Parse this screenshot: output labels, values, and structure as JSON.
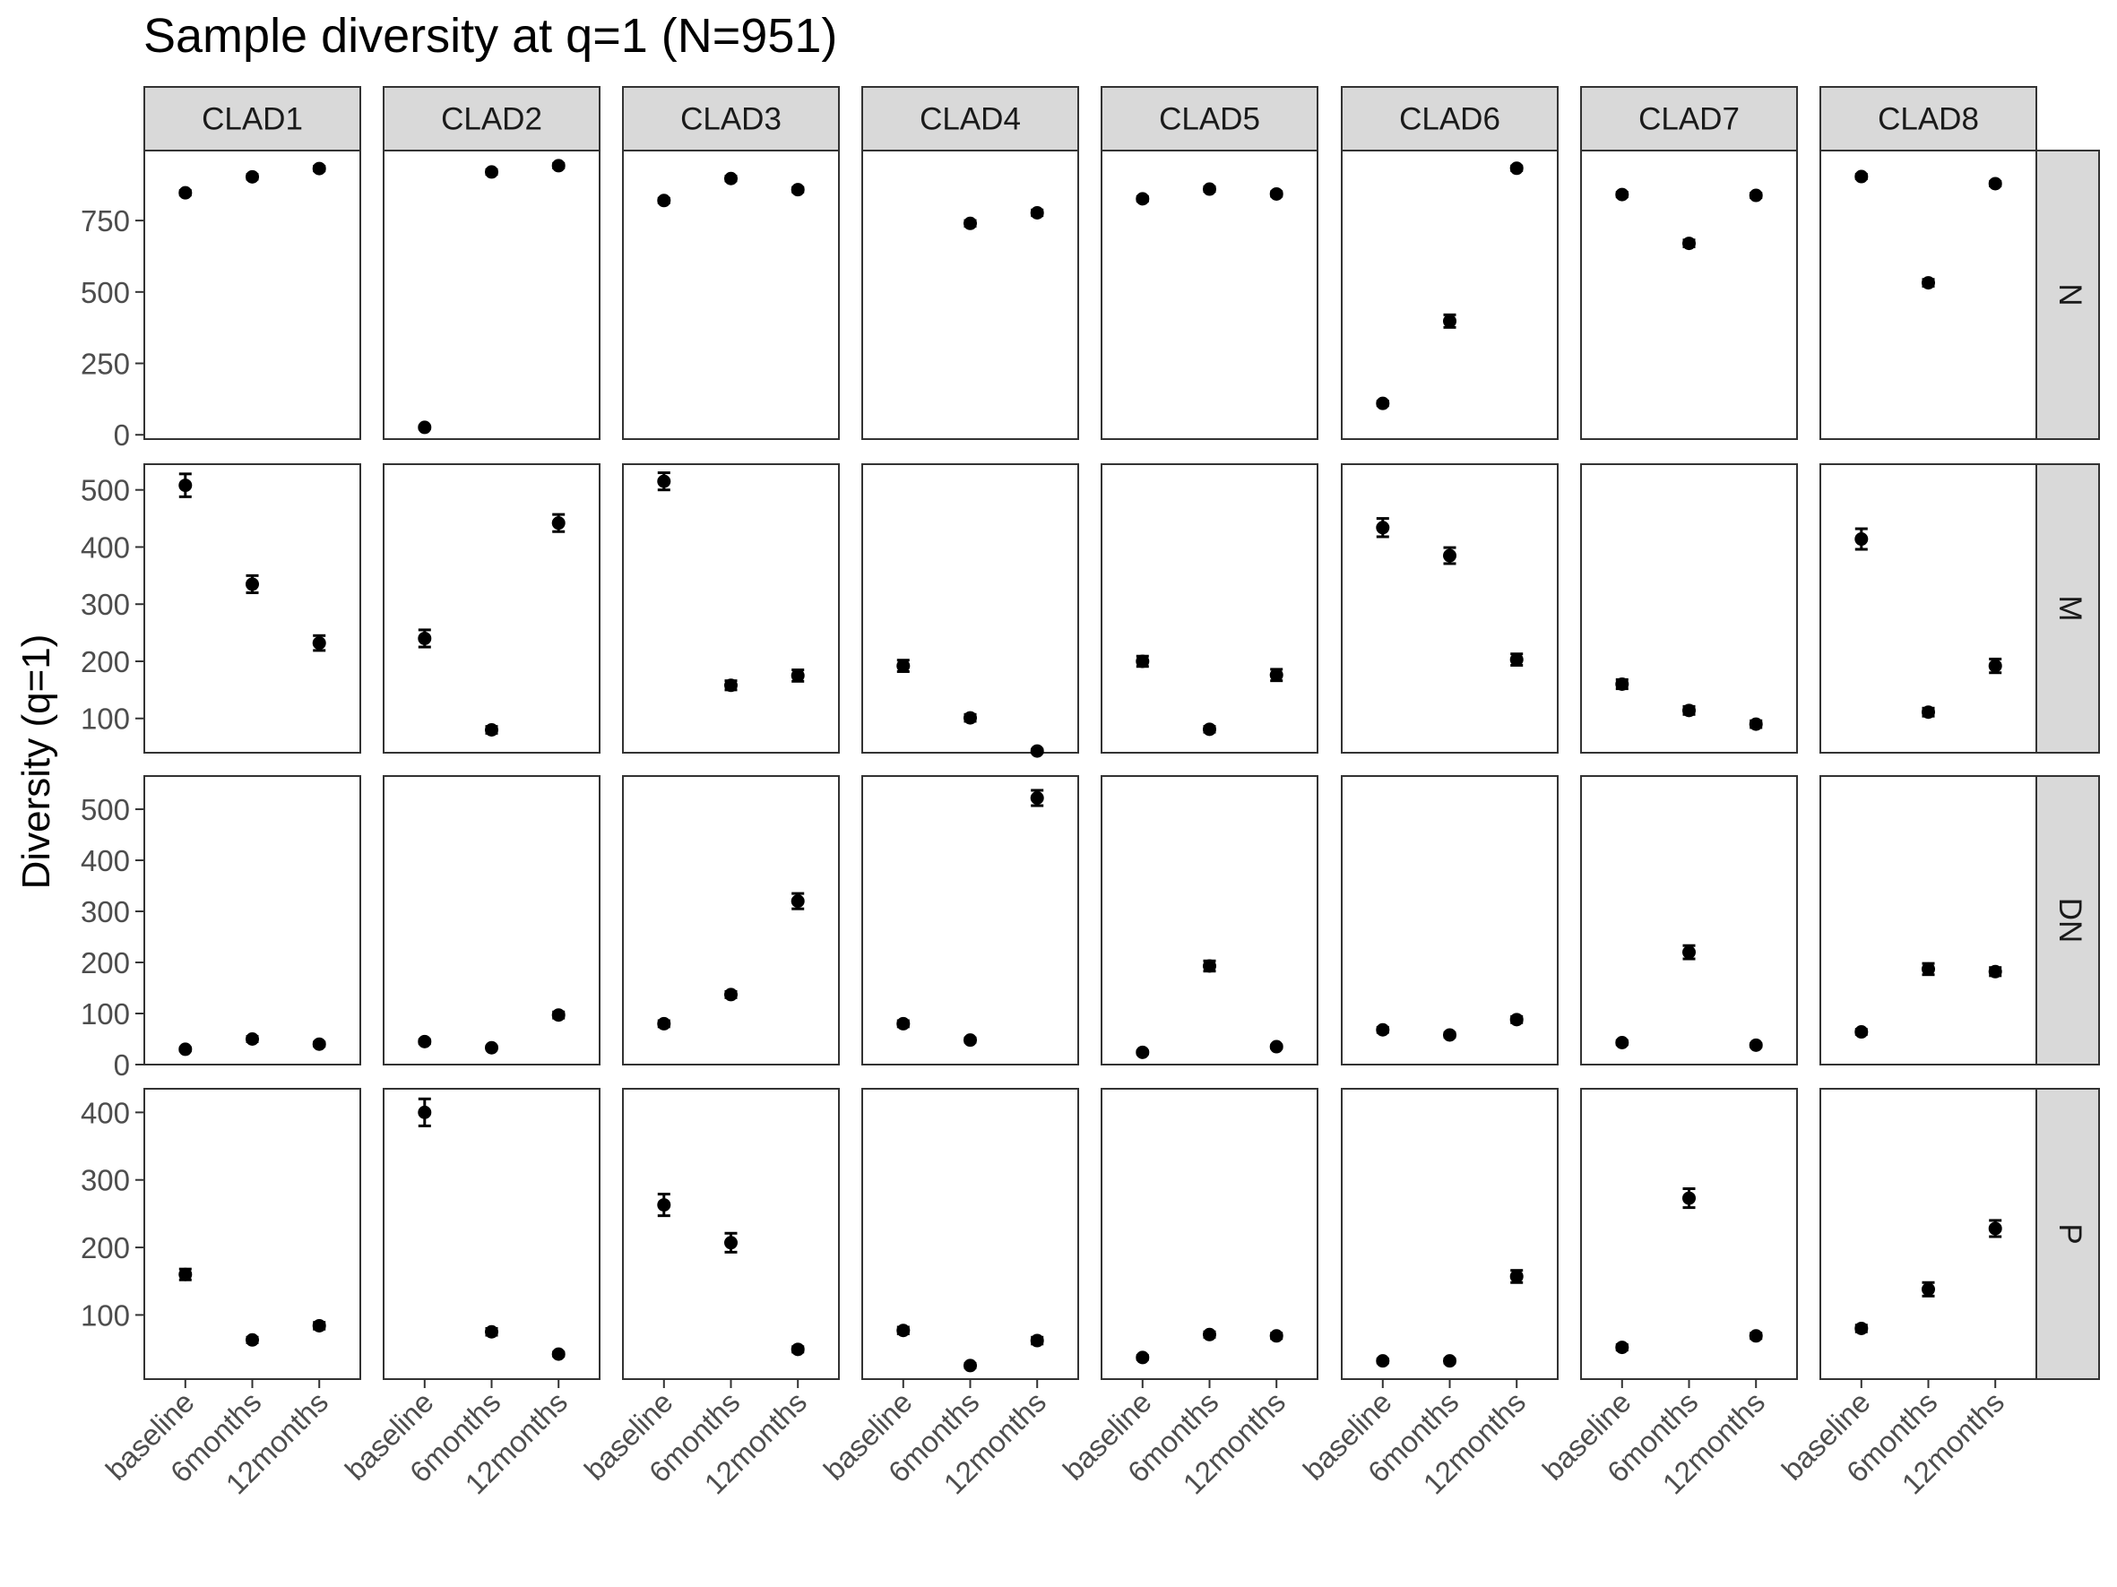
{
  "chart_data": {
    "type": "scatter",
    "title": "Sample diversity at q=1 (N=951)",
    "ylabel": "Diversity (q=1)",
    "xlabel": "",
    "columns": [
      "CLAD1",
      "CLAD2",
      "CLAD3",
      "CLAD4",
      "CLAD5",
      "CLAD6",
      "CLAD7",
      "CLAD8"
    ],
    "categories": [
      "baseline",
      "6months",
      "12months"
    ],
    "error_bars": true,
    "grid": false,
    "rows": [
      {
        "name": "N",
        "ylim": [
          -15,
          995
        ],
        "yticks": [
          0,
          250,
          500,
          750
        ],
        "points": [
          [
            [
              847,
              8
            ],
            [
              903,
              8
            ],
            [
              932,
              8
            ]
          ],
          [
            [
              26,
              4
            ],
            [
              920,
              8
            ],
            [
              942,
              8
            ]
          ],
          [
            [
              820,
              8
            ],
            [
              897,
              8
            ],
            [
              858,
              8
            ]
          ],
          [
            null,
            [
              740,
              10
            ],
            [
              777,
              10
            ]
          ],
          [
            [
              826,
              8
            ],
            [
              860,
              8
            ],
            [
              843,
              8
            ]
          ],
          [
            [
              110,
              8
            ],
            [
              398,
              22
            ],
            [
              933,
              8
            ]
          ],
          [
            [
              841,
              8
            ],
            [
              670,
              12
            ],
            [
              838,
              8
            ]
          ],
          [
            [
              904,
              8
            ],
            [
              532,
              12
            ],
            [
              879,
              8
            ]
          ]
        ]
      },
      {
        "name": "M",
        "ylim": [
          40,
          545
        ],
        "yticks": [
          100,
          200,
          300,
          400,
          500
        ],
        "points": [
          [
            [
              508,
              20
            ],
            [
              335,
              15
            ],
            [
              232,
              13
            ]
          ],
          [
            [
              240,
              15
            ],
            [
              80,
              6
            ],
            [
              442,
              15
            ]
          ],
          [
            [
              515,
              15
            ],
            [
              158,
              8
            ],
            [
              175,
              10
            ]
          ],
          [
            [
              192,
              10
            ],
            [
              101,
              6
            ],
            [
              43,
              3
            ]
          ],
          [
            [
              200,
              9
            ],
            [
              81,
              5
            ],
            [
              176,
              10
            ]
          ],
          [
            [
              434,
              16
            ],
            [
              385,
              14
            ],
            [
              203,
              10
            ]
          ],
          [
            [
              160,
              8
            ],
            [
              114,
              7
            ],
            [
              90,
              6
            ]
          ],
          [
            [
              414,
              18
            ],
            [
              111,
              7
            ],
            [
              192,
              12
            ]
          ]
        ]
      },
      {
        "name": "DN",
        "ylim": [
          0,
          565
        ],
        "yticks": [
          0,
          100,
          200,
          300,
          400,
          500
        ],
        "points": [
          [
            [
              30,
              3
            ],
            [
              50,
              5
            ],
            [
              40,
              4
            ]
          ],
          [
            [
              45,
              4
            ],
            [
              33,
              3
            ],
            [
              97,
              6
            ]
          ],
          [
            [
              80,
              6
            ],
            [
              137,
              6
            ],
            [
              320,
              15
            ]
          ],
          [
            [
              80,
              6
            ],
            [
              48,
              4
            ],
            [
              522,
              15
            ]
          ],
          [
            [
              24,
              3
            ],
            [
              193,
              10
            ],
            [
              35,
              3
            ]
          ],
          [
            [
              68,
              5
            ],
            [
              58,
              4
            ],
            [
              88,
              6
            ]
          ],
          [
            [
              43,
              4
            ],
            [
              220,
              13
            ],
            [
              38,
              3
            ]
          ],
          [
            [
              64,
              5
            ],
            [
              187,
              11
            ],
            [
              182,
              8
            ]
          ]
        ]
      },
      {
        "name": "P",
        "ylim": [
          5,
          435
        ],
        "yticks": [
          100,
          200,
          300,
          400
        ],
        "points": [
          [
            [
              160,
              8
            ],
            [
              63,
              4
            ],
            [
              84,
              5
            ]
          ],
          [
            [
              400,
              20
            ],
            [
              75,
              5
            ],
            [
              42,
              3
            ]
          ],
          [
            [
              263,
              16
            ],
            [
              207,
              14
            ],
            [
              49,
              4
            ]
          ],
          [
            [
              77,
              5
            ],
            [
              25,
              3
            ],
            [
              62,
              5
            ]
          ],
          [
            [
              37,
              3
            ],
            [
              71,
              4
            ],
            [
              69,
              4
            ]
          ],
          [
            [
              32,
              3
            ],
            [
              32,
              3
            ],
            [
              157,
              9
            ]
          ],
          [
            [
              52,
              4
            ],
            [
              273,
              14
            ],
            [
              69,
              4
            ]
          ],
          [
            [
              80,
              5
            ],
            [
              138,
              10
            ],
            [
              228,
              12
            ]
          ]
        ]
      }
    ]
  }
}
